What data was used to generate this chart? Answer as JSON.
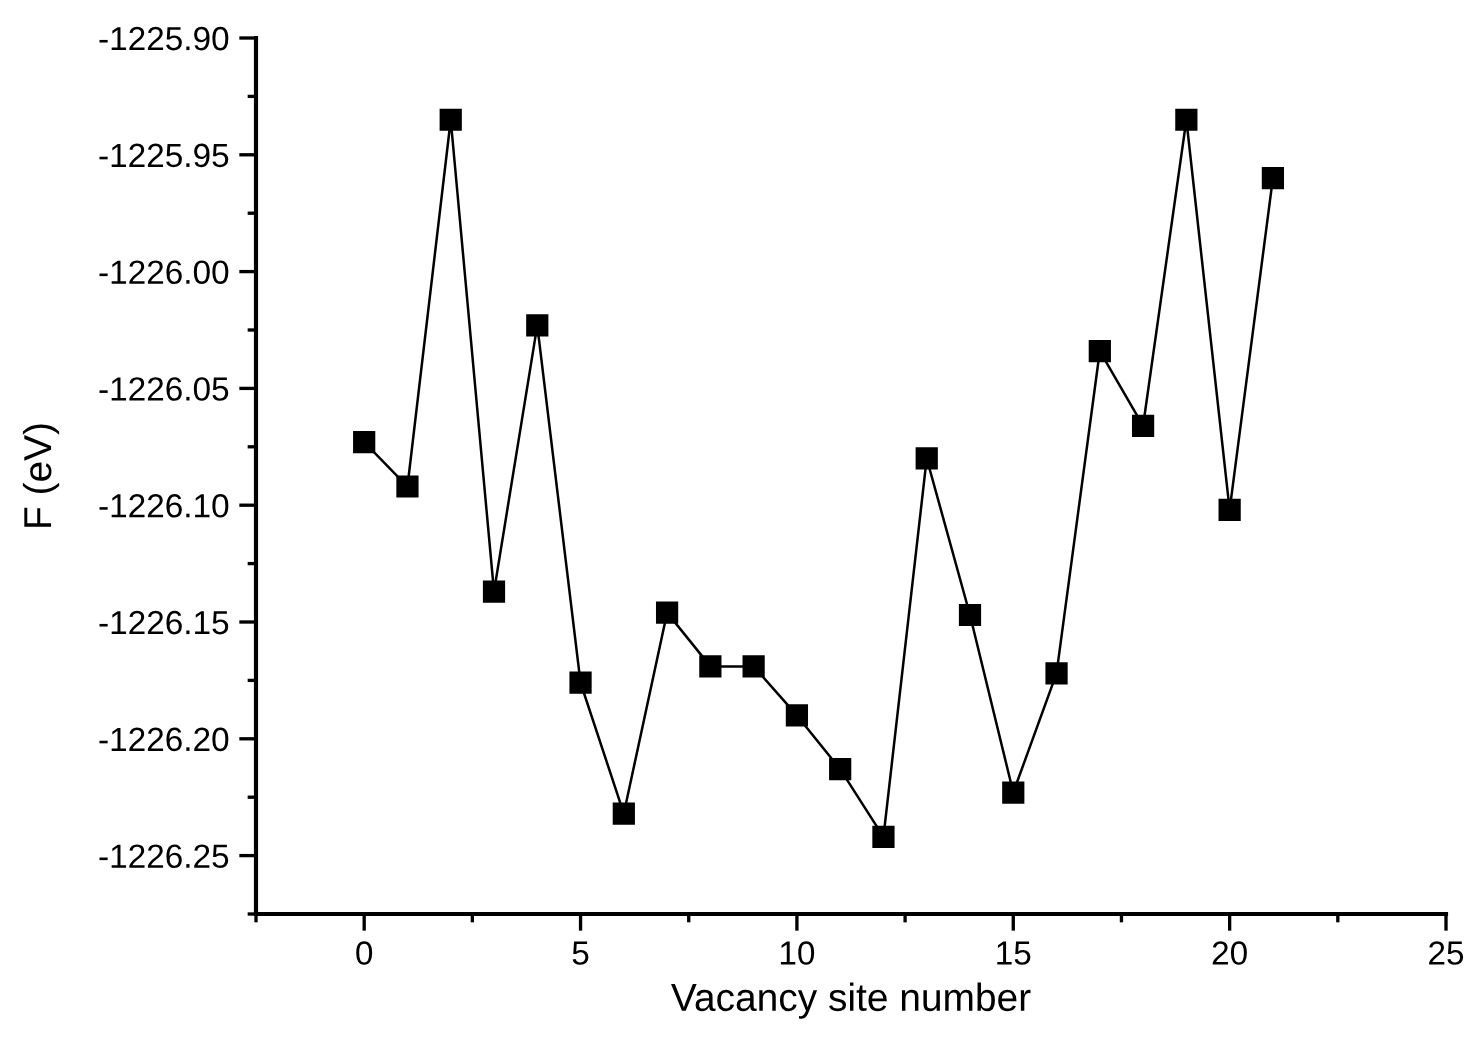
{
  "chart_data": {
    "type": "line",
    "xlabel": "Vacancy site number",
    "ylabel": "F (eV)",
    "x": [
      0,
      1,
      2,
      3,
      4,
      5,
      6,
      7,
      8,
      9,
      10,
      11,
      12,
      13,
      14,
      15,
      16,
      17,
      18,
      19,
      20,
      21
    ],
    "series": [
      {
        "color": "#000000",
        "values": [
          -1226.073,
          -1226.092,
          -1225.935,
          -1226.137,
          -1226.023,
          -1226.176,
          -1226.232,
          -1226.146,
          -1226.169,
          -1226.169,
          -1226.19,
          -1226.213,
          -1226.242,
          -1226.08,
          -1226.147,
          -1226.223,
          -1226.172,
          -1226.034,
          -1226.066,
          -1225.935,
          -1226.102,
          -1225.96
        ]
      }
    ],
    "xlim": [
      -2.5,
      25
    ],
    "xticks": [
      0,
      5,
      10,
      15,
      20,
      25
    ],
    "ylim": [
      -1226.275,
      -1225.9
    ],
    "yticks": [
      {
        "value": -1225.9,
        "label": "-1225.90"
      },
      {
        "value": -1225.95,
        "label": "-1225.95"
      },
      {
        "value": -1226.0,
        "label": "-1226.00"
      },
      {
        "value": -1226.05,
        "label": "-1226.05"
      },
      {
        "value": -1226.1,
        "label": "-1226.10"
      },
      {
        "value": -1226.15,
        "label": "-1226.15"
      },
      {
        "value": -1226.2,
        "label": "-1226.20"
      },
      {
        "value": -1226.25,
        "label": "-1226.25"
      }
    ],
    "marker": "square",
    "line_style": "solid",
    "grid": false,
    "legend": false
  }
}
